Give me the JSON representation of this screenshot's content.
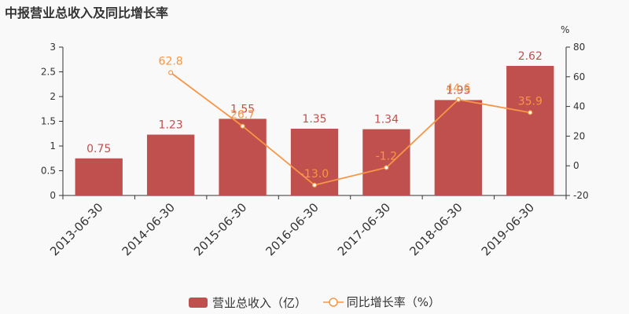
{
  "chart_data": {
    "type": "bar",
    "title": "中报营业总收入及同比增长率",
    "categories": [
      "2013-06-30",
      "2014-06-30",
      "2015-06-30",
      "2016-06-30",
      "2017-06-30",
      "2018-06-30",
      "2019-06-30"
    ],
    "series": [
      {
        "name": "营业总收入（亿）",
        "type": "bar",
        "axis": "left",
        "color": "#c0504d",
        "values": [
          0.75,
          1.23,
          1.55,
          1.35,
          1.34,
          1.93,
          2.62
        ],
        "labels": [
          "0.75",
          "1.23",
          "1.55",
          "1.35",
          "1.34",
          "1.93",
          "2.62"
        ]
      },
      {
        "name": "同比增长率（%）",
        "type": "line",
        "axis": "right",
        "color": "#f79646",
        "values": [
          null,
          62.8,
          26.7,
          -13.0,
          -1.2,
          44.6,
          35.9
        ],
        "labels": [
          "",
          "62.8",
          "26.7",
          "-13.0",
          "-1.2",
          "44.6",
          "35.9"
        ]
      }
    ],
    "y_left": {
      "min": 0,
      "max": 3,
      "ticks": [
        "0",
        "0.5",
        "1",
        "1.5",
        "2",
        "2.5",
        "3"
      ],
      "tick_values": [
        0,
        0.5,
        1,
        1.5,
        2,
        2.5,
        3
      ]
    },
    "y_right": {
      "min": -20,
      "max": 80,
      "unit": "%",
      "ticks": [
        "-20",
        "0",
        "20",
        "40",
        "60",
        "80"
      ],
      "tick_values": [
        -20,
        0,
        20,
        40,
        60,
        80
      ]
    },
    "grid": false,
    "legend": "bottom"
  },
  "legend": {
    "bar_label": "营业总收入（亿）",
    "line_label": "同比增长率（%）"
  }
}
